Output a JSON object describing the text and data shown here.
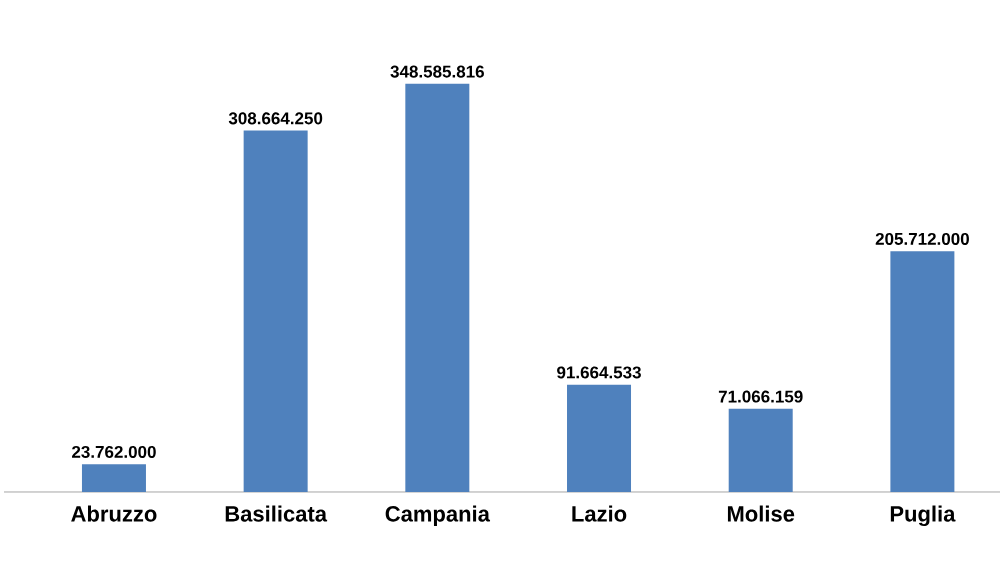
{
  "chart_data": {
    "type": "bar",
    "categories": [
      "Abruzzo",
      "Basilicata",
      "Campania",
      "Lazio",
      "Molise",
      "Puglia"
    ],
    "values": [
      23762000,
      308664250,
      348585816,
      91664533,
      71066159,
      205712000
    ],
    "value_labels": [
      "23.762.000",
      "308.664.250",
      "348.585.816",
      "91.664.533",
      "71.066.159",
      "205.712.000"
    ],
    "color": "#4f81bd"
  }
}
